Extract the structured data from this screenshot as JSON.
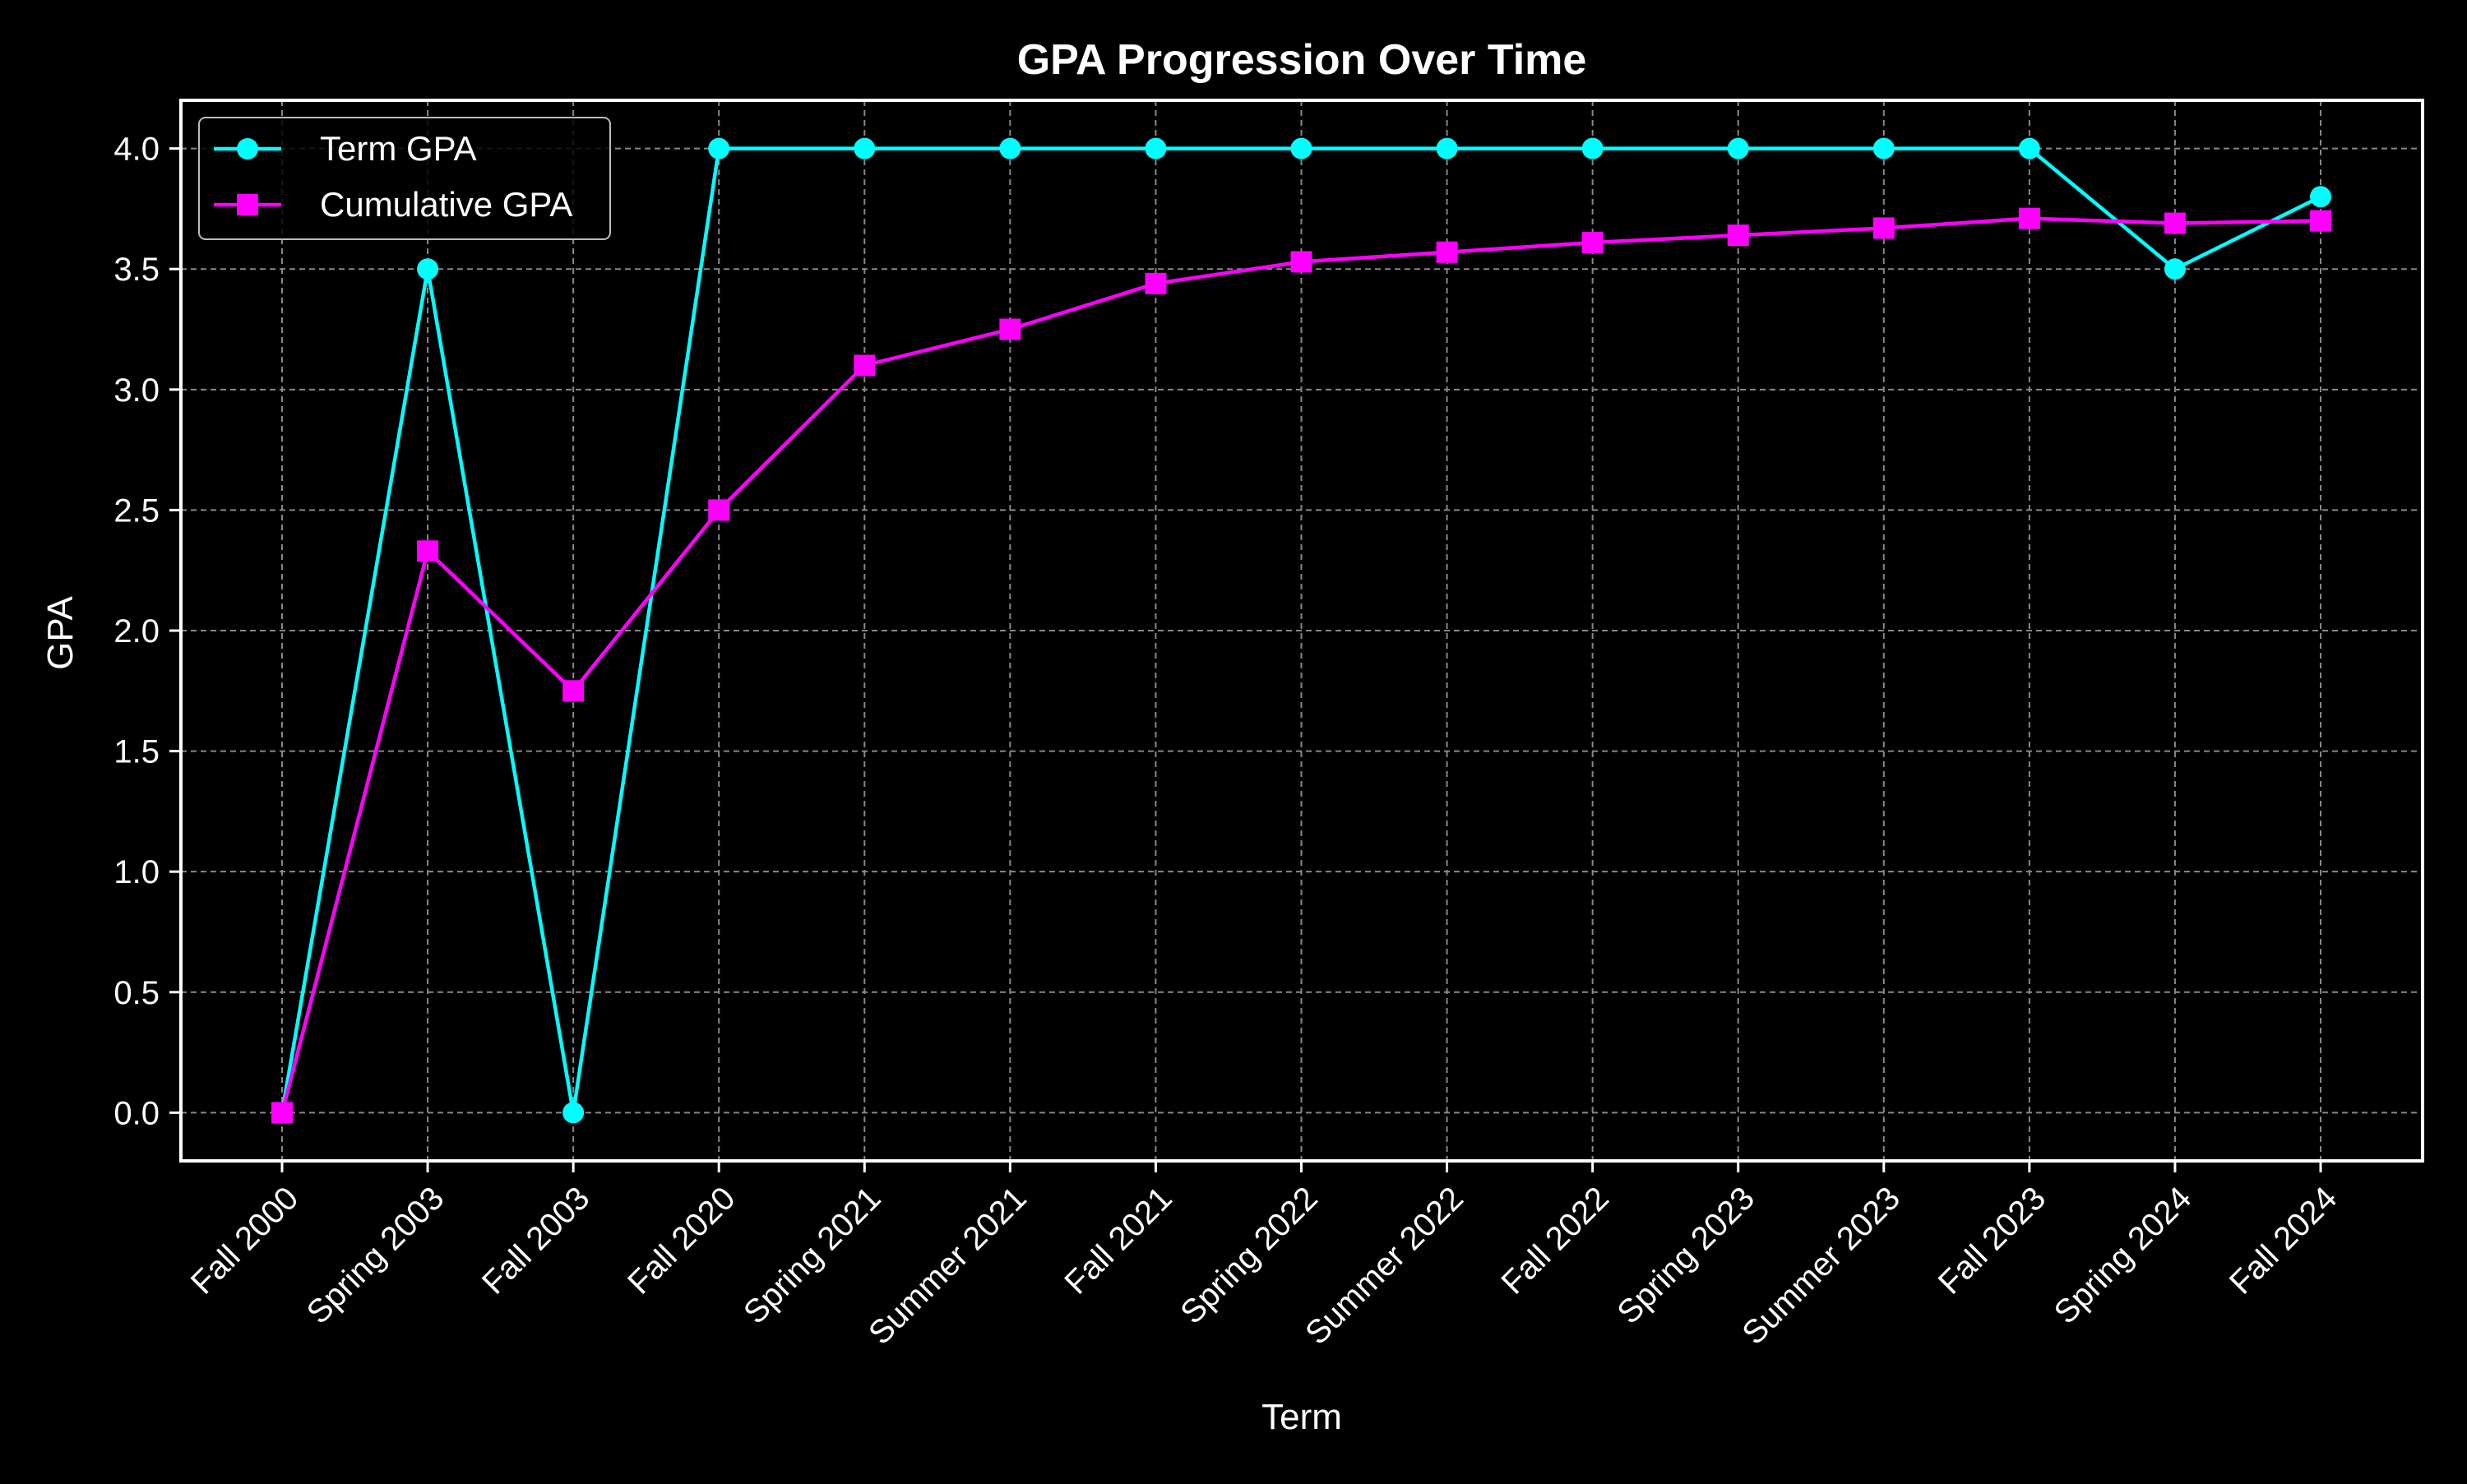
{
  "chart_data": {
    "type": "line",
    "title": "GPA Progression Over Time",
    "xlabel": "Term",
    "ylabel": "GPA",
    "categories": [
      "Fall 2000",
      "Spring 2003",
      "Fall 2003",
      "Fall 2020",
      "Spring 2021",
      "Summer 2021",
      "Fall 2021",
      "Spring 2022",
      "Summer 2022",
      "Fall 2022",
      "Spring 2023",
      "Summer 2023",
      "Fall 2023",
      "Spring 2024",
      "Fall 2024"
    ],
    "series": [
      {
        "name": "Term GPA",
        "color": "#00ffff",
        "marker": "circle",
        "values": [
          0.0,
          3.5,
          0.0,
          4.0,
          4.0,
          4.0,
          4.0,
          4.0,
          4.0,
          4.0,
          4.0,
          4.0,
          4.0,
          3.5,
          3.8
        ]
      },
      {
        "name": "Cumulative GPA",
        "color": "#ff00ff",
        "marker": "square",
        "values": [
          0.0,
          2.33,
          1.75,
          2.5,
          3.1,
          3.25,
          3.44,
          3.53,
          3.57,
          3.61,
          3.64,
          3.67,
          3.71,
          3.69,
          3.7
        ]
      }
    ],
    "ylim": [
      -0.2,
      4.2
    ],
    "yticks": [
      "0.0",
      "0.5",
      "1.0",
      "1.5",
      "2.0",
      "2.5",
      "3.0",
      "3.5",
      "4.0"
    ],
    "grid": true,
    "legend_position": "top-left",
    "colors": {
      "background": "#000000",
      "axes": "#ffffff",
      "grid": "#888888",
      "text": "#ffffff"
    }
  }
}
